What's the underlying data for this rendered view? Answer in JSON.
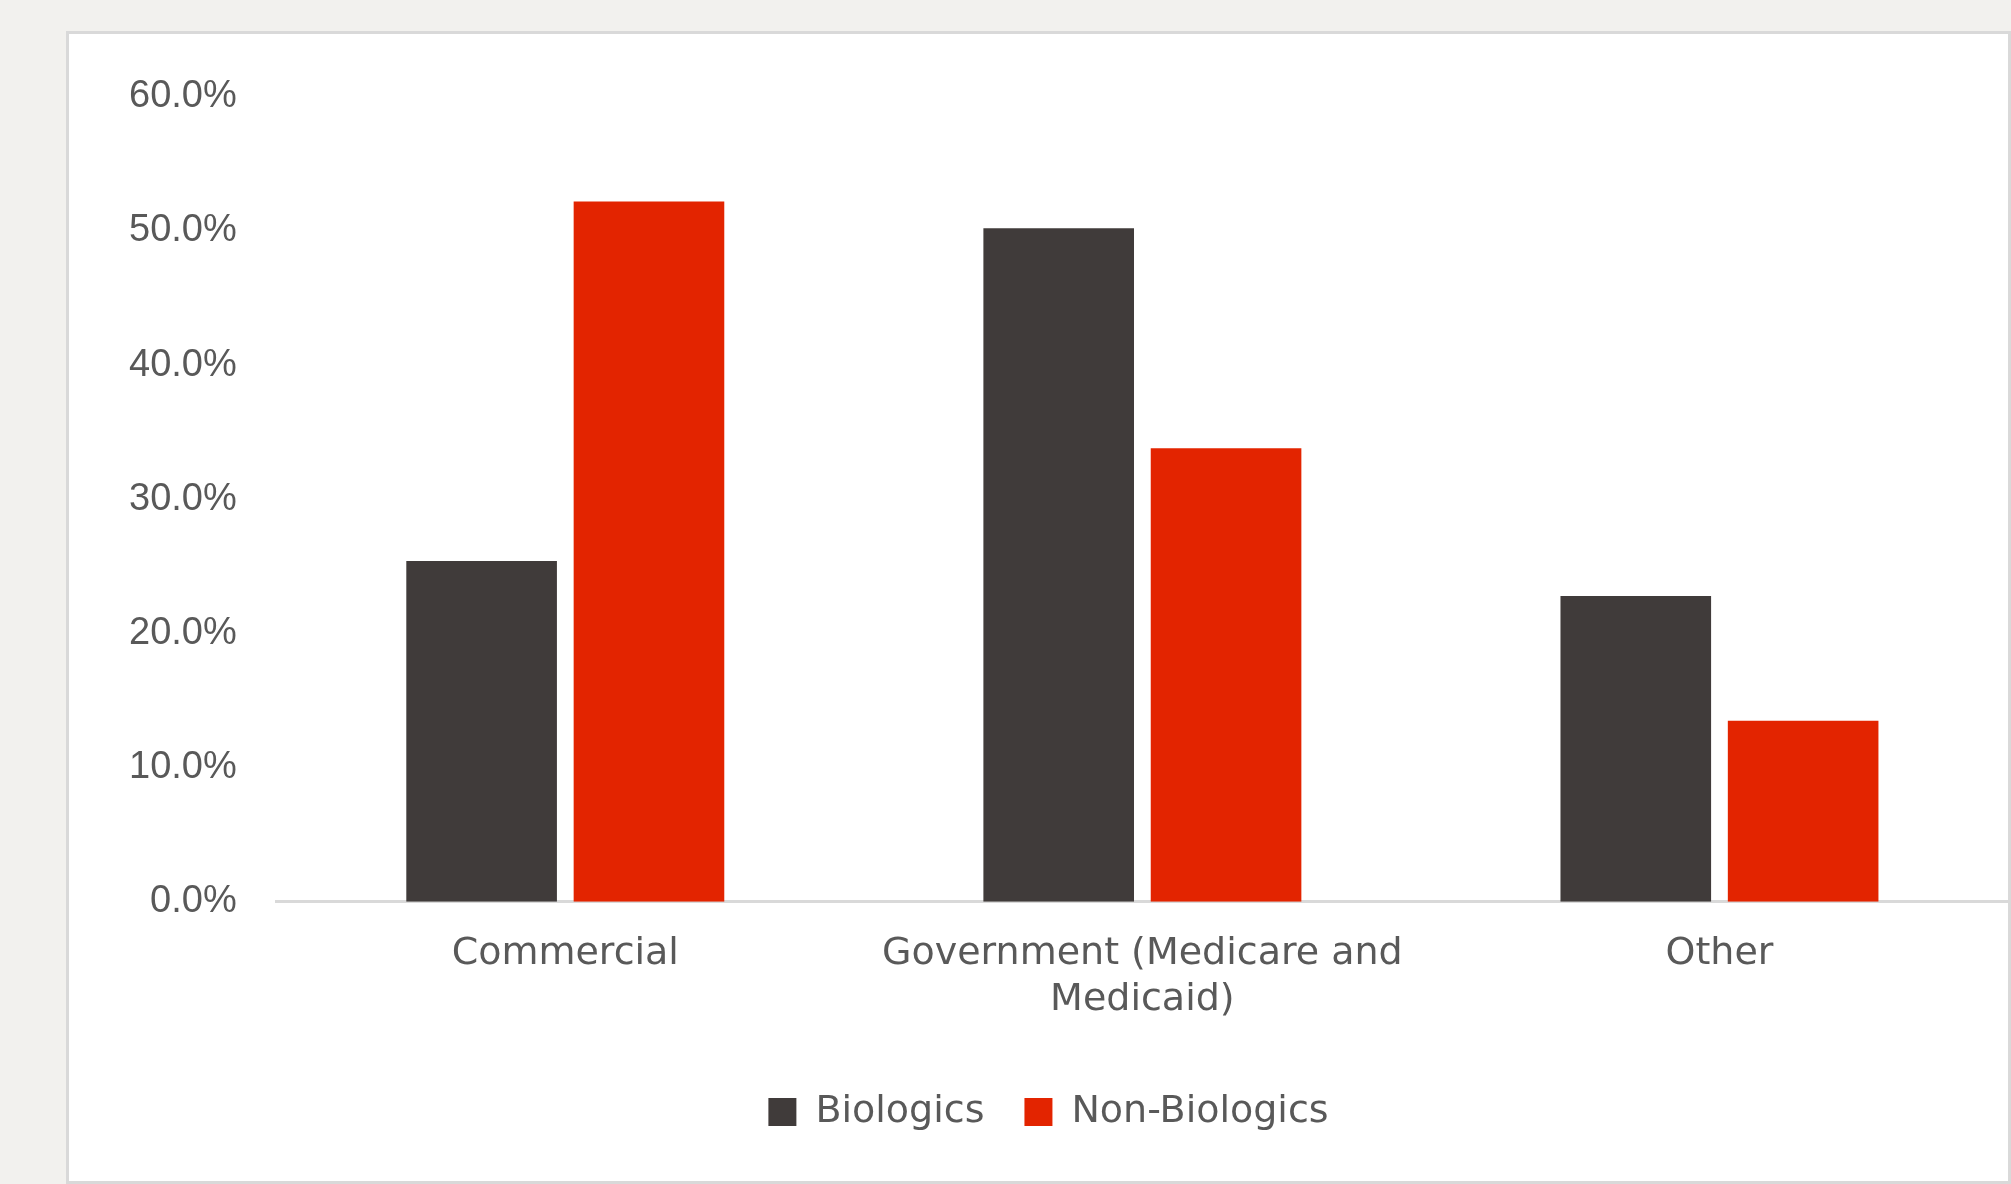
{
  "chart_data": {
    "type": "bar",
    "categories": [
      "Commercial",
      "Government (Medicare and Medicaid)",
      "Other"
    ],
    "series": [
      {
        "name": "Biologics",
        "color": "#403b3a",
        "values": [
          25.4,
          50.2,
          22.8
        ]
      },
      {
        "name": "Non-Biologics",
        "color": "#e32400",
        "values": [
          52.2,
          33.8,
          13.5
        ]
      }
    ],
    "ylim": [
      0,
      60
    ],
    "yticks": [
      {
        "value": 0,
        "label": "0.0%"
      },
      {
        "value": 10,
        "label": "10.0%"
      },
      {
        "value": 20,
        "label": "20.0%"
      },
      {
        "value": 30,
        "label": "30.0%"
      },
      {
        "value": 40,
        "label": "40.0%"
      },
      {
        "value": 50,
        "label": "50.0%"
      },
      {
        "value": 60,
        "label": "60.0%"
      }
    ],
    "grid": false,
    "legend": "bottom"
  }
}
